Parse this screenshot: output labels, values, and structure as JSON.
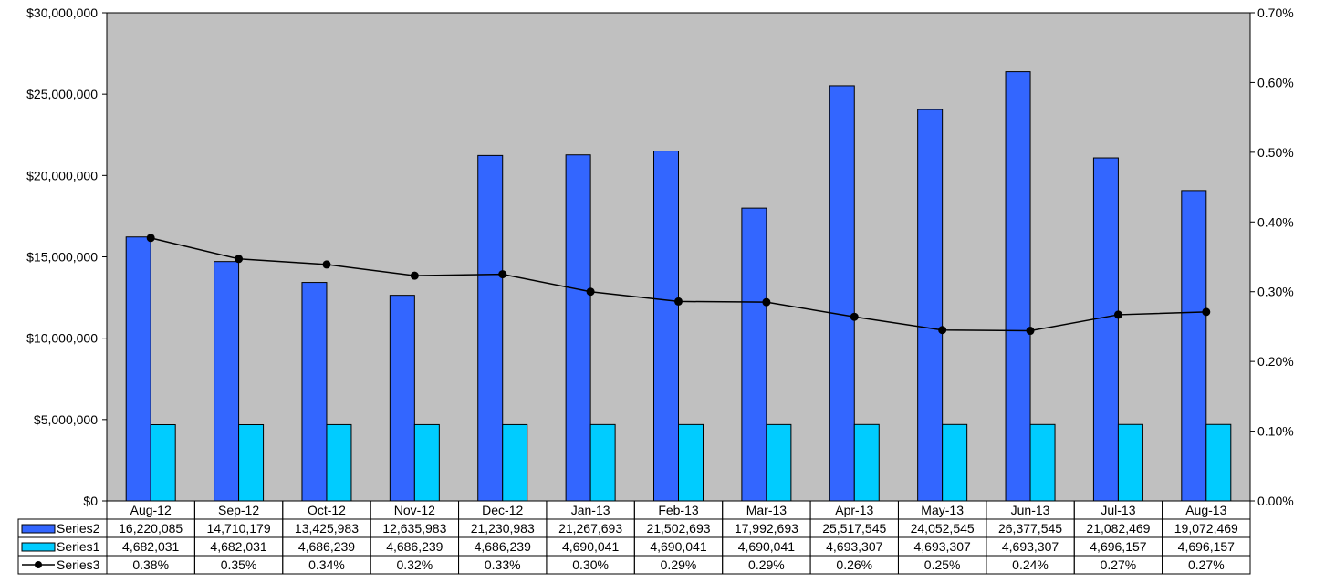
{
  "chart_data": {
    "type": "bar",
    "categories": [
      "Aug-12",
      "Sep-12",
      "Oct-12",
      "Nov-12",
      "Dec-12",
      "Jan-13",
      "Feb-13",
      "Mar-13",
      "Apr-13",
      "May-13",
      "Jun-13",
      "Jul-13",
      "Aug-13"
    ],
    "series": [
      {
        "name": "Series2",
        "type": "bar",
        "axis": "left",
        "color": "#3366ff",
        "values": [
          16220085,
          14710179,
          13425983,
          12635983,
          21230983,
          21267693,
          21502693,
          17992693,
          25517545,
          24052545,
          26377545,
          21082469,
          19072469
        ],
        "labels": [
          "16,220,085",
          "14,710,179",
          "13,425,983",
          "12,635,983",
          "21,230,983",
          "21,267,693",
          "21,502,693",
          "17,992,693",
          "25,517,545",
          "24,052,545",
          "26,377,545",
          "21,082,469",
          "19,072,469"
        ]
      },
      {
        "name": "Series1",
        "type": "bar",
        "axis": "left",
        "color": "#00ccff",
        "values": [
          4682031,
          4682031,
          4686239,
          4686239,
          4686239,
          4690041,
          4690041,
          4690041,
          4693307,
          4693307,
          4693307,
          4696157,
          4696157
        ],
        "labels": [
          "4,682,031",
          "4,682,031",
          "4,686,239",
          "4,686,239",
          "4,686,239",
          "4,690,041",
          "4,690,041",
          "4,690,041",
          "4,693,307",
          "4,693,307",
          "4,693,307",
          "4,696,157",
          "4,696,157"
        ]
      },
      {
        "name": "Series3",
        "type": "line",
        "axis": "right",
        "color": "#000000",
        "values": [
          0.377,
          0.347,
          0.339,
          0.323,
          0.325,
          0.3,
          0.286,
          0.285,
          0.264,
          0.245,
          0.244,
          0.267,
          0.271
        ],
        "labels": [
          "0.38%",
          "0.35%",
          "0.34%",
          "0.32%",
          "0.33%",
          "0.30%",
          "0.29%",
          "0.29%",
          "0.26%",
          "0.25%",
          "0.24%",
          "0.27%",
          "0.27%"
        ]
      }
    ],
    "y_left": {
      "ylim": [
        0,
        30000000
      ],
      "tick_labels": [
        "$0",
        "$5,000,000",
        "$10,000,000",
        "$15,000,000",
        "$20,000,000",
        "$25,000,000",
        "$30,000,000"
      ]
    },
    "y_right": {
      "ylim": [
        0,
        0.7
      ],
      "tick_labels": [
        "0.00%",
        "0.10%",
        "0.20%",
        "0.30%",
        "0.40%",
        "0.50%",
        "0.60%",
        "0.70%"
      ]
    },
    "plot_background": "#c0c0c0",
    "grid": false,
    "legend": "data-table"
  }
}
